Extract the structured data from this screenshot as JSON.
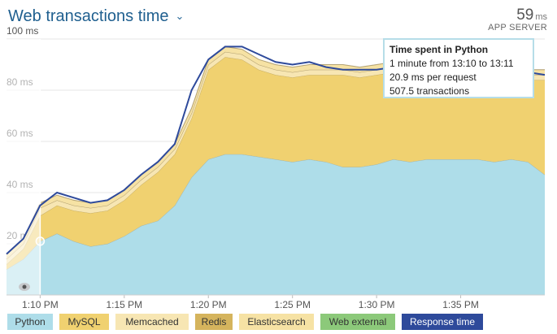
{
  "header": {
    "title": "Web transactions time",
    "summary_value": "59",
    "summary_unit": "ms",
    "summary_label": "APP SERVER"
  },
  "tooltip": {
    "title": "Time spent in Python",
    "line1": "1 minute from 13:10 to 13:11",
    "line2": "20.9 ms per request",
    "line3": "507.5 transactions"
  },
  "colors": {
    "Python": "#aedde9",
    "MySQL": "#f0d170",
    "Memcached": "#f7e6b3",
    "Redis": "#d5b45d",
    "Elasticsearch": "#f6e2a4",
    "Web external": "#8cc97a",
    "Response time": "#2e4a9b"
  },
  "chart_data": {
    "type": "area",
    "title": "Web transactions time",
    "xlabel": "",
    "ylabel": "",
    "xlim": [
      0,
      32
    ],
    "ylim": [
      0,
      100
    ],
    "x": [
      0,
      1,
      2,
      3,
      4,
      5,
      6,
      7,
      8,
      9,
      10,
      11,
      12,
      13,
      14,
      15,
      16,
      17,
      18,
      19,
      20,
      21,
      22,
      23,
      24,
      25,
      26,
      27,
      28,
      29,
      30,
      31,
      32
    ],
    "x_unit": "minutes after 1:08 PM",
    "xticks": [
      {
        "x": 2,
        "label": "1:10 PM"
      },
      {
        "x": 7,
        "label": "1:15 PM"
      },
      {
        "x": 12,
        "label": "1:20 PM"
      },
      {
        "x": 17,
        "label": "1:25 PM"
      },
      {
        "x": 22,
        "label": "1:30 PM"
      },
      {
        "x": 27,
        "label": "1:35 PM"
      }
    ],
    "yticks": [
      {
        "y": 20,
        "label": "20 ms"
      },
      {
        "y": 40,
        "label": "40 ms"
      },
      {
        "y": 60,
        "label": "60 ms"
      },
      {
        "y": 80,
        "label": "80 ms"
      },
      {
        "y": 100,
        "label": "100 ms"
      }
    ],
    "series": [
      {
        "name": "Python",
        "values": [
          10,
          14,
          21,
          24,
          21,
          19,
          20,
          23,
          27,
          29,
          35,
          46,
          53,
          55,
          55,
          54,
          53,
          52,
          53,
          52,
          50,
          50,
          51,
          53,
          52,
          53,
          53,
          53,
          53,
          52,
          53,
          52,
          47
        ]
      },
      {
        "name": "MySQL",
        "values": [
          2,
          4,
          10,
          11,
          12,
          13,
          13,
          14,
          16,
          19,
          20,
          23,
          35,
          38,
          37,
          34,
          33,
          33,
          33,
          34,
          36,
          35,
          35,
          34,
          33,
          33,
          33,
          33,
          34,
          34,
          33,
          32,
          37
        ]
      },
      {
        "name": "Memcached",
        "values": [
          2,
          2,
          3,
          2,
          2,
          2,
          2,
          2,
          2,
          2,
          2,
          2,
          2,
          2,
          2,
          2,
          2,
          2,
          2,
          2,
          2,
          2,
          2,
          2,
          2,
          2,
          2,
          2,
          2,
          2,
          2,
          2,
          2
        ]
      },
      {
        "name": "Redis",
        "values": [
          0,
          0,
          0,
          0,
          0,
          0,
          0,
          0,
          0,
          0,
          0,
          0,
          0,
          0,
          0,
          0,
          0,
          0,
          0,
          0,
          0,
          0,
          0,
          0,
          0,
          0,
          0,
          0,
          0,
          0,
          0,
          0,
          0
        ]
      },
      {
        "name": "Elasticsearch",
        "values": [
          2,
          2,
          2,
          2,
          2,
          2,
          2,
          2,
          2,
          2,
          2,
          2,
          2,
          2,
          2,
          2,
          2,
          2,
          2,
          2,
          2,
          2,
          2,
          2,
          2,
          2,
          2,
          2,
          2,
          2,
          2,
          2,
          2
        ]
      },
      {
        "name": "Web external",
        "values": [
          0,
          0,
          0,
          0,
          0,
          0,
          0,
          0,
          0,
          0,
          0,
          0,
          0,
          0,
          0,
          0,
          0,
          0,
          0,
          0,
          0,
          0,
          0,
          0,
          0,
          0,
          0,
          0,
          0,
          0,
          0,
          0,
          0
        ]
      },
      {
        "name": "Response time",
        "values": [
          16,
          22,
          35,
          40,
          38,
          36,
          37,
          41,
          47,
          52,
          59,
          80,
          92,
          97,
          97,
          94,
          91,
          90,
          91,
          89,
          88,
          88,
          88,
          89,
          88,
          89,
          89,
          88,
          89,
          88,
          88,
          87,
          86
        ]
      }
    ],
    "highlight": {
      "x_start": 1,
      "x_end": 2,
      "series": "Python",
      "y": 21
    },
    "legend": [
      "Python",
      "MySQL",
      "Memcached",
      "Redis",
      "Elasticsearch",
      "Web external",
      "Response time"
    ],
    "legend_position": "bottom",
    "grid": true
  }
}
